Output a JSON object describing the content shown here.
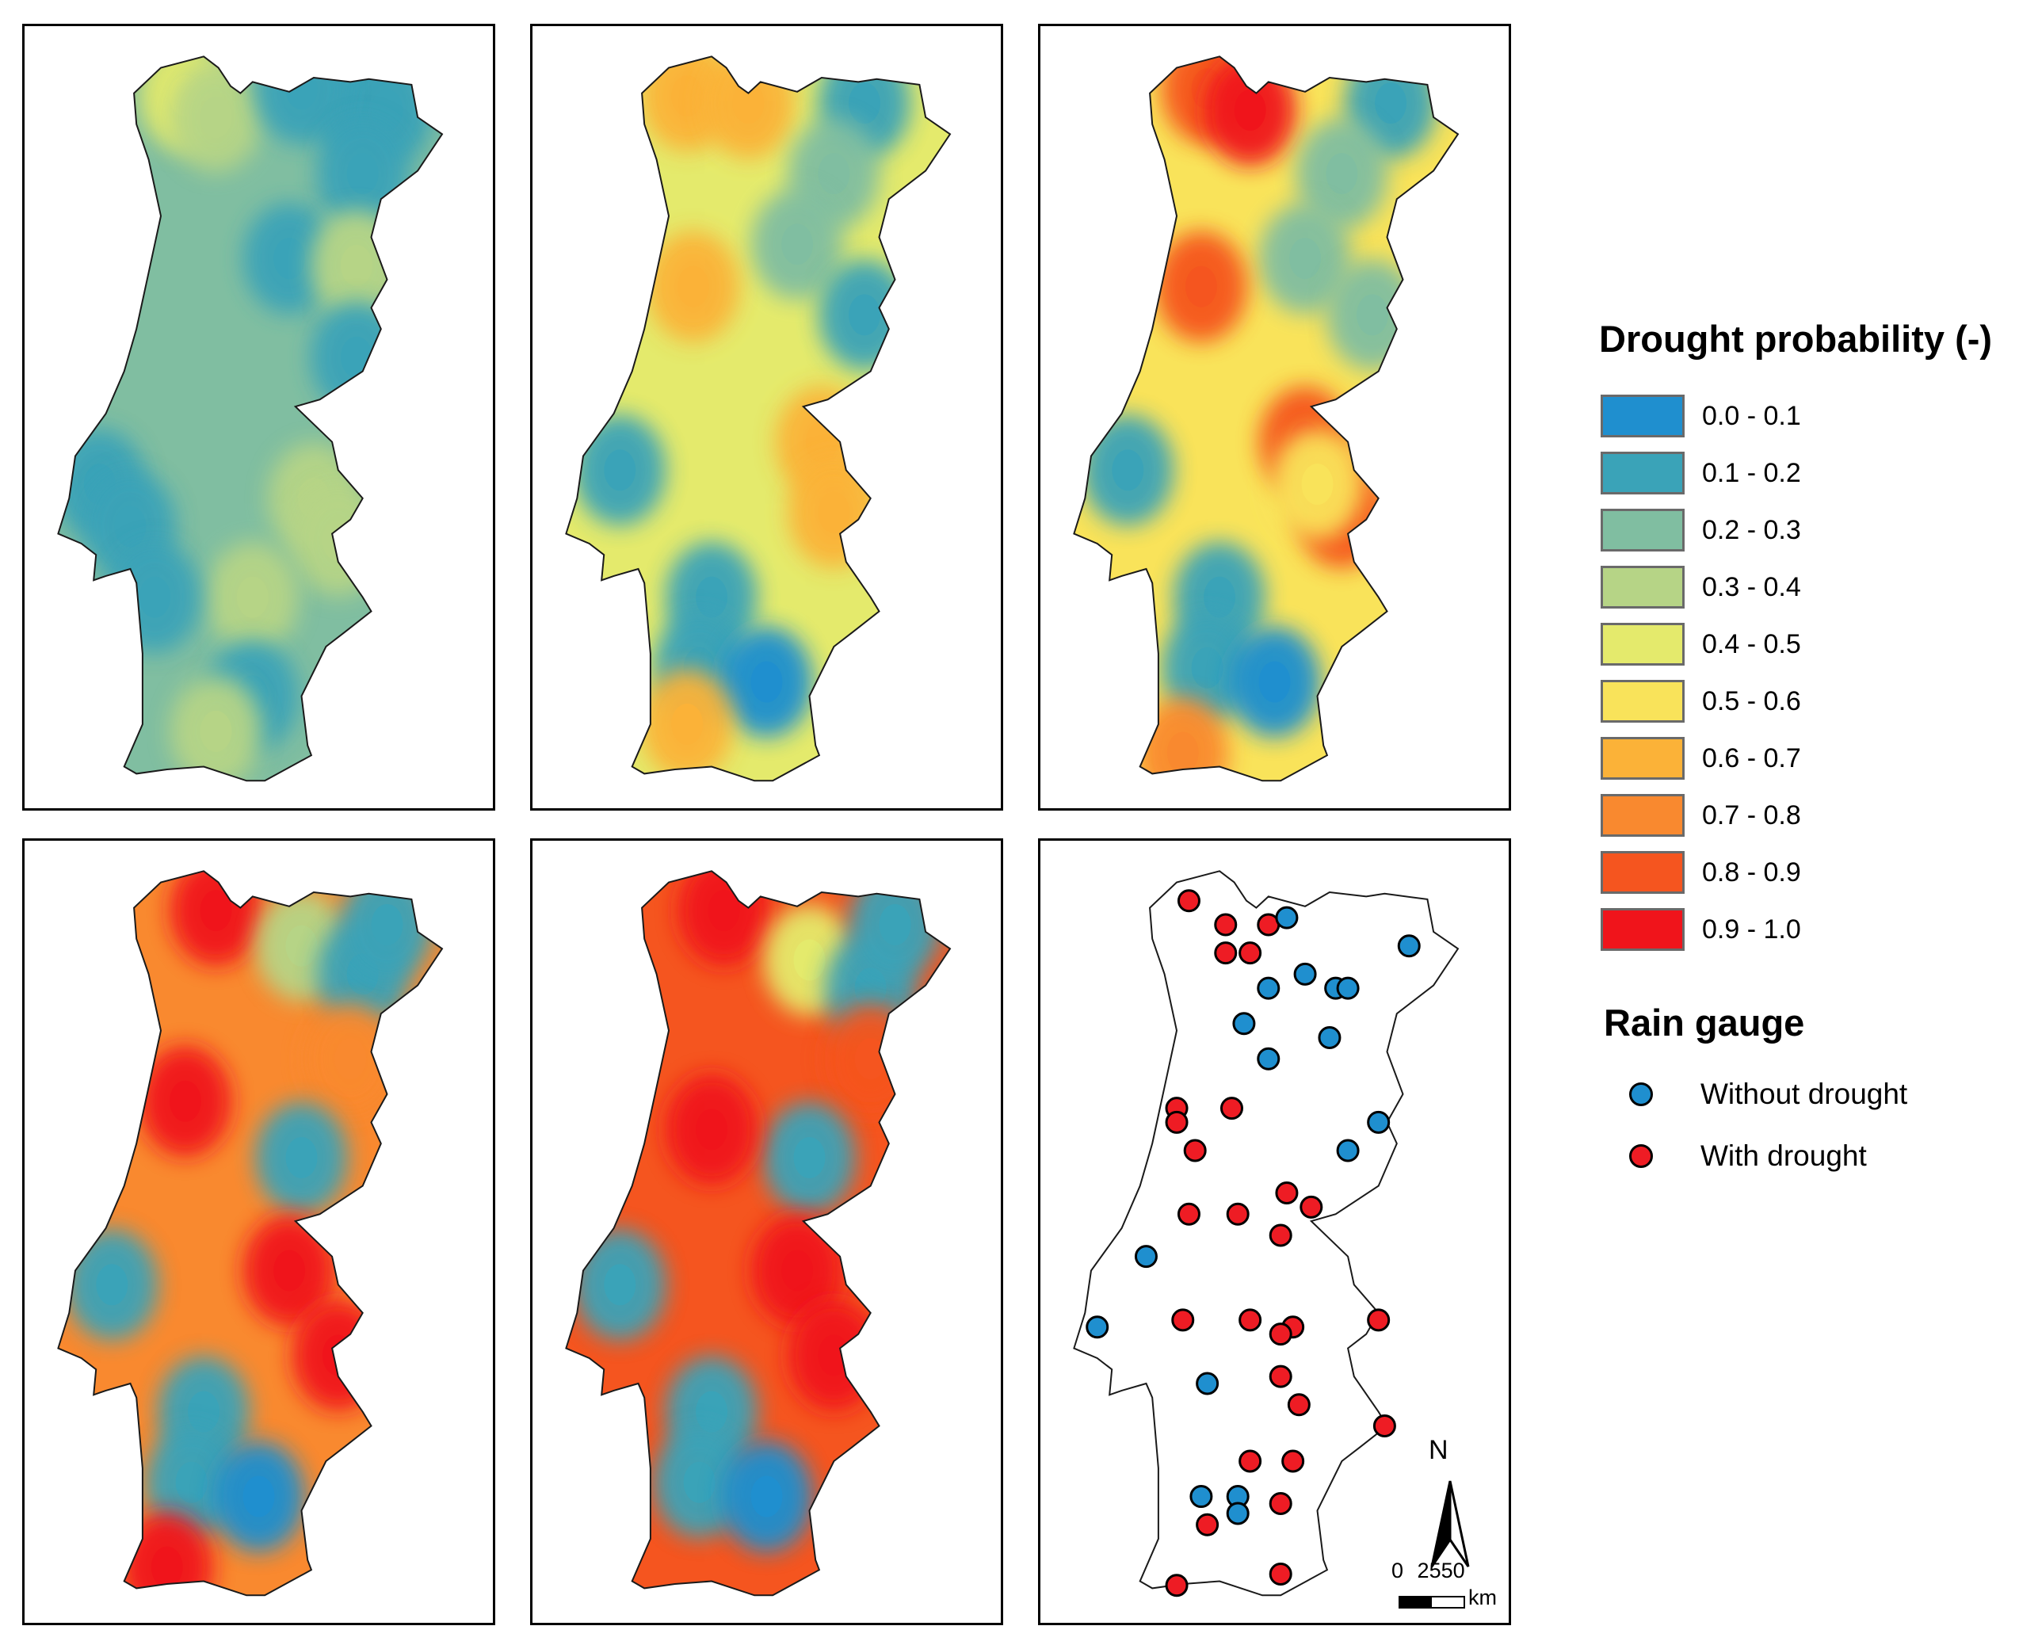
{
  "legend": {
    "title": "Drought probability (-)",
    "classes": [
      {
        "label": "0.0 - 0.1",
        "color": "#1f8fcf"
      },
      {
        "label": "0.1 - 0.2",
        "color": "#3aa3b8"
      },
      {
        "label": "0.2 - 0.3",
        "color": "#80bea1"
      },
      {
        "label": "0.3 - 0.4",
        "color": "#b6d486"
      },
      {
        "label": "0.4 - 0.5",
        "color": "#e4ea6c"
      },
      {
        "label": "0.5 - 0.6",
        "color": "#f9e35a"
      },
      {
        "label": "0.6 - 0.7",
        "color": "#fbb238"
      },
      {
        "label": "0.7 - 0.8",
        "color": "#f9892f"
      },
      {
        "label": "0.8 - 0.9",
        "color": "#f5551f"
      },
      {
        "label": "0.9 - 1.0",
        "color": "#f0141b"
      }
    ]
  },
  "rain_gauge": {
    "title": "Rain gauge",
    "items": [
      {
        "label": "Without drought",
        "color": "#1f8fcf"
      },
      {
        "label": "With drought",
        "color": "#ee1c24"
      }
    ]
  },
  "maps": [
    {
      "name": "map-1",
      "base_class": 2,
      "blobs": [
        {
          "lon": -8.45,
          "lat": 41.85,
          "class": 4
        },
        {
          "lon": -8.2,
          "lat": 41.7,
          "class": 3
        },
        {
          "lon": -7.05,
          "lat": 41.8,
          "class": 1
        },
        {
          "lon": -6.8,
          "lat": 41.75,
          "class": 1
        },
        {
          "lon": -7.5,
          "lat": 41.9,
          "class": 1
        },
        {
          "lon": -7.0,
          "lat": 41.3,
          "class": 1
        },
        {
          "lon": -7.6,
          "lat": 40.7,
          "class": 1
        },
        {
          "lon": -7.05,
          "lat": 40.65,
          "class": 3
        },
        {
          "lon": -7.05,
          "lat": 40.0,
          "class": 1
        },
        {
          "lon": -9.15,
          "lat": 39.1,
          "class": 1
        },
        {
          "lon": -8.9,
          "lat": 38.8,
          "class": 1
        },
        {
          "lon": -7.4,
          "lat": 39.0,
          "class": 3
        },
        {
          "lon": -7.2,
          "lat": 38.7,
          "class": 3
        },
        {
          "lon": -7.9,
          "lat": 38.3,
          "class": 3
        },
        {
          "lon": -8.7,
          "lat": 38.3,
          "class": 1
        },
        {
          "lon": -7.9,
          "lat": 37.6,
          "class": 1
        },
        {
          "lon": -8.2,
          "lat": 37.35,
          "class": 3
        }
      ]
    },
    {
      "name": "map-2",
      "base_class": 4,
      "blobs": [
        {
          "lon": -8.5,
          "lat": 41.85,
          "class": 6
        },
        {
          "lon": -8.0,
          "lat": 41.8,
          "class": 6
        },
        {
          "lon": -7.05,
          "lat": 41.8,
          "class": 1
        },
        {
          "lon": -7.3,
          "lat": 41.3,
          "class": 2
        },
        {
          "lon": -7.6,
          "lat": 40.8,
          "class": 2
        },
        {
          "lon": -7.05,
          "lat": 40.3,
          "class": 1
        },
        {
          "lon": -8.45,
          "lat": 40.5,
          "class": 6
        },
        {
          "lon": -9.05,
          "lat": 39.2,
          "class": 1
        },
        {
          "lon": -7.4,
          "lat": 39.4,
          "class": 6
        },
        {
          "lon": -7.3,
          "lat": 38.9,
          "class": 6
        },
        {
          "lon": -8.3,
          "lat": 38.3,
          "class": 1
        },
        {
          "lon": -8.4,
          "lat": 37.8,
          "class": 1
        },
        {
          "lon": -7.85,
          "lat": 37.7,
          "class": 0
        },
        {
          "lon": -8.5,
          "lat": 37.4,
          "class": 6
        }
      ]
    },
    {
      "name": "map-3",
      "base_class": 5,
      "blobs": [
        {
          "lon": -8.4,
          "lat": 41.9,
          "class": 8
        },
        {
          "lon": -8.05,
          "lat": 41.75,
          "class": 9
        },
        {
          "lon": -6.9,
          "lat": 41.8,
          "class": 1
        },
        {
          "lon": -7.3,
          "lat": 41.3,
          "class": 2
        },
        {
          "lon": -7.6,
          "lat": 40.7,
          "class": 2
        },
        {
          "lon": -7.05,
          "lat": 40.3,
          "class": 2
        },
        {
          "lon": -8.45,
          "lat": 40.5,
          "class": 8
        },
        {
          "lon": -9.05,
          "lat": 39.2,
          "class": 1
        },
        {
          "lon": -7.6,
          "lat": 39.4,
          "class": 8
        },
        {
          "lon": -7.3,
          "lat": 38.9,
          "class": 8
        },
        {
          "lon": -7.5,
          "lat": 39.1,
          "class": 5
        },
        {
          "lon": -8.3,
          "lat": 38.3,
          "class": 1
        },
        {
          "lon": -8.4,
          "lat": 37.8,
          "class": 1
        },
        {
          "lon": -7.85,
          "lat": 37.7,
          "class": 0
        },
        {
          "lon": -8.6,
          "lat": 37.2,
          "class": 7
        }
      ]
    },
    {
      "name": "map-4",
      "base_class": 7,
      "blobs": [
        {
          "lon": -8.2,
          "lat": 41.85,
          "class": 9
        },
        {
          "lon": -7.5,
          "lat": 41.6,
          "class": 3
        },
        {
          "lon": -7.0,
          "lat": 41.4,
          "class": 1
        },
        {
          "lon": -6.8,
          "lat": 41.75,
          "class": 1
        },
        {
          "lon": -7.1,
          "lat": 40.8,
          "class": 7
        },
        {
          "lon": -7.5,
          "lat": 40.1,
          "class": 1
        },
        {
          "lon": -8.45,
          "lat": 40.5,
          "class": 9
        },
        {
          "lon": -9.05,
          "lat": 39.2,
          "class": 1
        },
        {
          "lon": -7.6,
          "lat": 39.3,
          "class": 9
        },
        {
          "lon": -7.2,
          "lat": 38.7,
          "class": 9
        },
        {
          "lon": -8.3,
          "lat": 38.3,
          "class": 1
        },
        {
          "lon": -8.4,
          "lat": 37.8,
          "class": 1
        },
        {
          "lon": -7.85,
          "lat": 37.7,
          "class": 0
        },
        {
          "lon": -8.6,
          "lat": 37.2,
          "class": 9
        }
      ]
    },
    {
      "name": "map-5",
      "base_class": 8,
      "blobs": [
        {
          "lon": -8.2,
          "lat": 41.85,
          "class": 9
        },
        {
          "lon": -7.5,
          "lat": 41.5,
          "class": 4
        },
        {
          "lon": -7.0,
          "lat": 41.3,
          "class": 1
        },
        {
          "lon": -6.8,
          "lat": 41.75,
          "class": 1
        },
        {
          "lon": -7.0,
          "lat": 40.8,
          "class": 8
        },
        {
          "lon": -7.5,
          "lat": 40.1,
          "class": 1
        },
        {
          "lon": -8.3,
          "lat": 40.3,
          "class": 9
        },
        {
          "lon": -7.6,
          "lat": 39.3,
          "class": 9
        },
        {
          "lon": -7.3,
          "lat": 38.7,
          "class": 9
        },
        {
          "lon": -9.05,
          "lat": 39.2,
          "class": 1
        },
        {
          "lon": -8.3,
          "lat": 38.3,
          "class": 1
        },
        {
          "lon": -8.4,
          "lat": 37.8,
          "class": 1
        },
        {
          "lon": -7.85,
          "lat": 37.7,
          "class": 0
        }
      ]
    }
  ],
  "gauges": [
    {
      "lon": -8.55,
      "lat": 41.92,
      "drought": true
    },
    {
      "lon": -8.25,
      "lat": 41.75,
      "drought": true
    },
    {
      "lon": -7.9,
      "lat": 41.75,
      "drought": true
    },
    {
      "lon": -7.75,
      "lat": 41.8,
      "drought": false
    },
    {
      "lon": -6.75,
      "lat": 41.6,
      "drought": false
    },
    {
      "lon": -8.25,
      "lat": 41.55,
      "drought": true
    },
    {
      "lon": -8.05,
      "lat": 41.55,
      "drought": true
    },
    {
      "lon": -7.6,
      "lat": 41.4,
      "drought": false
    },
    {
      "lon": -7.9,
      "lat": 41.3,
      "drought": false
    },
    {
      "lon": -7.35,
      "lat": 41.3,
      "drought": false
    },
    {
      "lon": -7.25,
      "lat": 41.3,
      "drought": false
    },
    {
      "lon": -8.1,
      "lat": 41.05,
      "drought": false
    },
    {
      "lon": -7.4,
      "lat": 40.95,
      "drought": false
    },
    {
      "lon": -7.9,
      "lat": 40.8,
      "drought": false
    },
    {
      "lon": -8.65,
      "lat": 40.45,
      "drought": true
    },
    {
      "lon": -8.65,
      "lat": 40.35,
      "drought": true
    },
    {
      "lon": -8.2,
      "lat": 40.45,
      "drought": true
    },
    {
      "lon": -7.0,
      "lat": 40.35,
      "drought": false
    },
    {
      "lon": -8.5,
      "lat": 40.15,
      "drought": true
    },
    {
      "lon": -7.25,
      "lat": 40.15,
      "drought": false
    },
    {
      "lon": -8.55,
      "lat": 39.7,
      "drought": true
    },
    {
      "lon": -8.15,
      "lat": 39.7,
      "drought": true
    },
    {
      "lon": -7.75,
      "lat": 39.85,
      "drought": true
    },
    {
      "lon": -7.55,
      "lat": 39.75,
      "drought": true
    },
    {
      "lon": -8.9,
      "lat": 39.4,
      "drought": false
    },
    {
      "lon": -7.8,
      "lat": 39.55,
      "drought": true
    },
    {
      "lon": -9.3,
      "lat": 38.9,
      "drought": false
    },
    {
      "lon": -8.6,
      "lat": 38.95,
      "drought": true
    },
    {
      "lon": -8.05,
      "lat": 38.95,
      "drought": true
    },
    {
      "lon": -7.7,
      "lat": 38.9,
      "drought": true
    },
    {
      "lon": -7.8,
      "lat": 38.85,
      "drought": true
    },
    {
      "lon": -7.0,
      "lat": 38.95,
      "drought": true
    },
    {
      "lon": -8.4,
      "lat": 38.5,
      "drought": false
    },
    {
      "lon": -7.8,
      "lat": 38.55,
      "drought": true
    },
    {
      "lon": -7.65,
      "lat": 38.35,
      "drought": true
    },
    {
      "lon": -6.95,
      "lat": 38.2,
      "drought": true
    },
    {
      "lon": -8.05,
      "lat": 37.95,
      "drought": true
    },
    {
      "lon": -7.7,
      "lat": 37.95,
      "drought": true
    },
    {
      "lon": -8.45,
      "lat": 37.7,
      "drought": false
    },
    {
      "lon": -8.15,
      "lat": 37.7,
      "drought": false
    },
    {
      "lon": -8.15,
      "lat": 37.58,
      "drought": false
    },
    {
      "lon": -7.8,
      "lat": 37.65,
      "drought": true
    },
    {
      "lon": -8.4,
      "lat": 37.5,
      "drought": true
    },
    {
      "lon": -8.65,
      "lat": 37.07,
      "drought": true
    },
    {
      "lon": -7.8,
      "lat": 37.15,
      "drought": true
    }
  ],
  "north_arrow": {
    "label": "N"
  },
  "scale_bar": {
    "ticks": [
      "0",
      "25",
      "50"
    ],
    "unit": "km"
  }
}
